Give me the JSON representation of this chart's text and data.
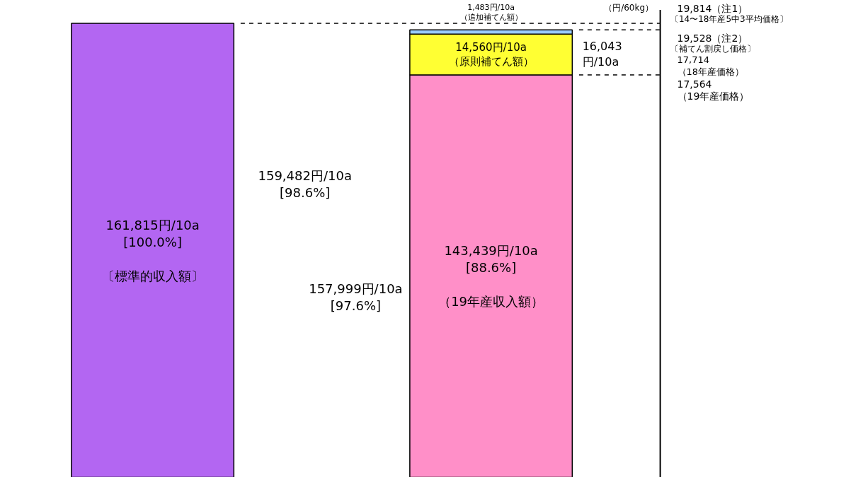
{
  "chart_data": {
    "type": "bar",
    "stacked": true,
    "categories": [
      null,
      null
    ],
    "ylim": [
      0,
      170000
    ],
    "tick_labels": false,
    "grid": false,
    "series": [
      {
        "colors": [
          "#b366f2",
          "#ff8fc8"
        ],
        "values": [
          161815,
          143439
        ],
        "value_labels": [
          "161,815円/10a\n[100.0%]\n\n〔標準的収入額〕",
          "143,439円/10a\n[88.6%]\n\n（19年産収入額）"
        ]
      },
      {
        "color": "#ffff33",
        "values": [
          null,
          14560
        ],
        "value_labels": [
          null,
          "14,560円/10a\n（原則補てん額）"
        ]
      },
      {
        "color": "#99ccff",
        "values": [
          null,
          1483
        ],
        "value_labels": [
          null,
          "1,483円/10a\n（追加補てん額）"
        ]
      }
    ],
    "ref_lines": [
      {
        "axis": "y",
        "value": 161815,
        "label": "19,814（注1）",
        "line_style": "dashed",
        "color": "#000000"
      },
      {
        "axis": "y",
        "value": 159482,
        "label": "19,528（注2）",
        "line_style": "dashed",
        "color": "#000000"
      },
      {
        "axis": "y",
        "value": 143439,
        "label": "17,564\n（19年産価格）",
        "line_style": "dashed",
        "color": "#000000"
      }
    ],
    "annotations": [
      "（円/60kg）",
      "159,482円/10a\n[98.6%]",
      "157,999円/10a\n[97.6%]",
      "16,043\n円/10a",
      "17,714\n（18年産価格）",
      "〔14〜18年産5中3平均価格〕",
      "〔補てん割戻し価格〕"
    ]
  }
}
